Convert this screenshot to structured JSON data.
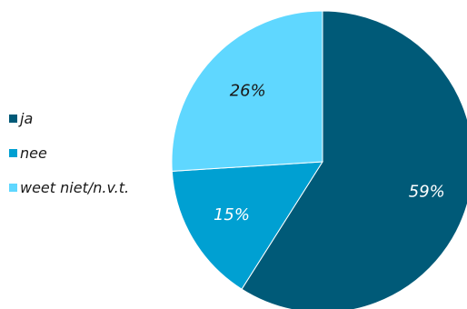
{
  "chart_data": {
    "type": "pie",
    "slices": [
      {
        "label": "ja",
        "value": 59,
        "value_label": "59%",
        "color": "#005a78",
        "text_color": "#ffffff"
      },
      {
        "label": "nee",
        "value": 15,
        "value_label": "15%",
        "color": "#00a0d2",
        "text_color": "#ffffff"
      },
      {
        "label": "weet niet/n.v.t.",
        "value": 26,
        "value_label": "26%",
        "color": "#5fd7ff",
        "text_color": "#1a1a1a"
      }
    ],
    "start_angle": "12 o'clock",
    "direction": "clockwise",
    "legend_position": "left"
  }
}
